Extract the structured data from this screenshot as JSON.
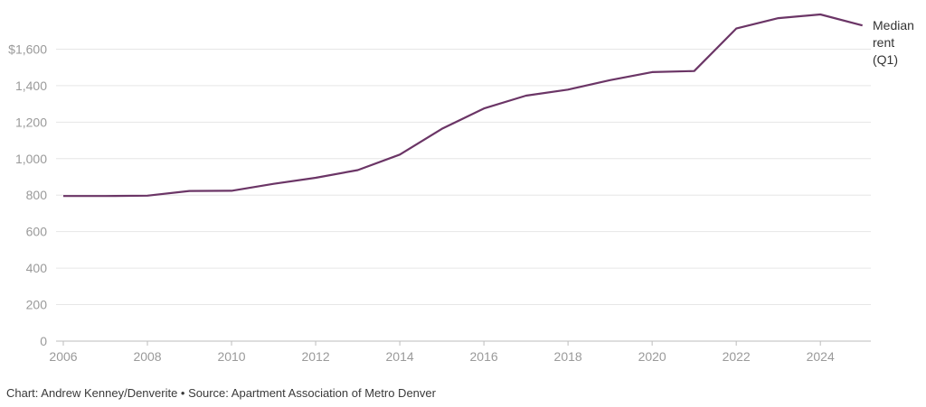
{
  "chart_data": {
    "type": "line",
    "x": [
      2006,
      2007,
      2008,
      2009,
      2010,
      2011,
      2012,
      2013,
      2014,
      2015,
      2016,
      2017,
      2018,
      2019,
      2020,
      2021,
      2022,
      2023,
      2024,
      2025
    ],
    "series": [
      {
        "name": "Median rent (Q1)",
        "label_lines": [
          "Median",
          "rent",
          "(Q1)"
        ],
        "values": [
          795,
          795,
          797,
          823,
          824,
          862,
          895,
          937,
          1022,
          1163,
          1275,
          1345,
          1378,
          1430,
          1474,
          1480,
          1713,
          1770,
          1790,
          1730
        ]
      }
    ],
    "y_ticks": [
      {
        "value": 0,
        "label": "0"
      },
      {
        "value": 200,
        "label": "200"
      },
      {
        "value": 400,
        "label": "400"
      },
      {
        "value": 600,
        "label": "600"
      },
      {
        "value": 800,
        "label": "800"
      },
      {
        "value": 1000,
        "label": "1,000"
      },
      {
        "value": 1200,
        "label": "1,200"
      },
      {
        "value": 1400,
        "label": "1,400"
      },
      {
        "value": 1600,
        "label": "$1,600"
      }
    ],
    "x_ticks": [
      {
        "value": 2006,
        "label": "2006"
      },
      {
        "value": 2008,
        "label": "2008"
      },
      {
        "value": 2010,
        "label": "2010"
      },
      {
        "value": 2012,
        "label": "2012"
      },
      {
        "value": 2014,
        "label": "2014"
      },
      {
        "value": 2016,
        "label": "2016"
      },
      {
        "value": 2018,
        "label": "2018"
      },
      {
        "value": 2020,
        "label": "2020"
      },
      {
        "value": 2022,
        "label": "2022"
      },
      {
        "value": 2024,
        "label": "2024"
      }
    ],
    "ylim": [
      0,
      1800
    ],
    "xlim": [
      2006,
      2025.2
    ],
    "grid": true,
    "title": "",
    "xlabel": "",
    "ylabel": "",
    "line_color": "#6b3566",
    "grid_color": "#e6e6e6"
  },
  "footer": {
    "credit": "Chart: Andrew Kenney/Denverite • Source: Apartment Association of Metro Denver"
  }
}
